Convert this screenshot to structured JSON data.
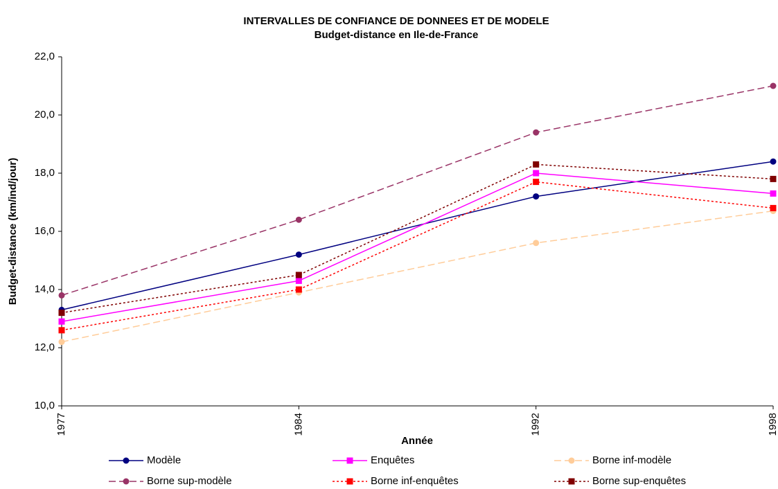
{
  "chart_data": {
    "type": "line",
    "title": "INTERVALLES DE CONFIANCE DE DONNEES ET DE MODELE",
    "subtitle": "Budget-distance en Ile-de-France",
    "x_label": "Année",
    "y_label": "Budget-distance (km/ind/jour)",
    "categories": [
      "1977",
      "1984",
      "1992",
      "1998"
    ],
    "ylim": [
      10,
      22
    ],
    "yticks": [
      {
        "value": 10,
        "label": "10,0"
      },
      {
        "value": 12,
        "label": "12,0"
      },
      {
        "value": 14,
        "label": "14,0"
      },
      {
        "value": 16,
        "label": "16,0"
      },
      {
        "value": 18,
        "label": "18,0"
      },
      {
        "value": 20,
        "label": "20,0"
      },
      {
        "value": 22,
        "label": "22,0"
      }
    ],
    "grid": false,
    "legend": "bottom",
    "series": [
      {
        "name": "Modèle",
        "color": "#000080",
        "dash": "solid",
        "marker": "circle",
        "values": [
          13.3,
          15.2,
          17.2,
          18.4
        ]
      },
      {
        "name": "Enquêtes",
        "color": "#ff00ff",
        "dash": "solid",
        "marker": "square",
        "values": [
          12.9,
          14.3,
          18.0,
          17.3
        ]
      },
      {
        "name": "Borne inf-modèle",
        "color": "#ffcc99",
        "dash": "dashed",
        "marker": "circle",
        "values": [
          12.2,
          13.9,
          15.6,
          16.7
        ]
      },
      {
        "name": "Borne sup-modèle",
        "color": "#993366",
        "dash": "dashed",
        "marker": "circle",
        "values": [
          13.8,
          16.4,
          19.4,
          21.0
        ]
      },
      {
        "name": "Borne inf-enquêtes",
        "color": "#ff0000",
        "dash": "dotted",
        "marker": "square",
        "values": [
          12.6,
          14.0,
          17.7,
          16.8
        ]
      },
      {
        "name": "Borne sup-enquêtes",
        "color": "#800000",
        "dash": "dotted",
        "marker": "square",
        "values": [
          13.2,
          14.5,
          18.3,
          17.8
        ]
      }
    ]
  }
}
